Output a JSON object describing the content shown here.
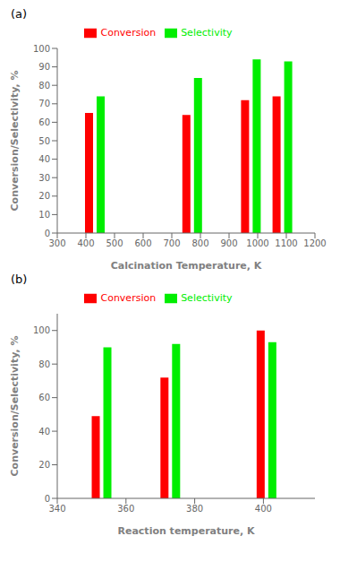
{
  "chart_data": [
    {
      "type": "bar",
      "title": "(a)",
      "x_label": "Calcination Temperature, K",
      "y_label": "Conversion/Selectivity, %",
      "x": [
        430,
        770,
        975,
        1085
      ],
      "series": [
        {
          "name": "Conversion",
          "color": "#ff0000",
          "values": [
            65,
            64,
            72,
            74
          ]
        },
        {
          "name": "Selectivity",
          "color": "#00ee00",
          "values": [
            74,
            84,
            94,
            93
          ]
        }
      ],
      "xlim": [
        300,
        1200
      ],
      "ylim": [
        0,
        100
      ],
      "xticks": [
        300,
        400,
        500,
        600,
        700,
        800,
        900,
        1000,
        1100,
        1200
      ],
      "yticks": [
        0,
        10,
        20,
        30,
        40,
        50,
        60,
        70,
        80,
        90,
        100
      ],
      "grid": false,
      "legend": "top"
    },
    {
      "type": "bar",
      "title": "(b)",
      "x_label": "Reaction temperature, K",
      "y_label": "Conversion/Selectivity, %",
      "x": [
        353,
        373,
        401
      ],
      "series": [
        {
          "name": "Conversion",
          "color": "#ff0000",
          "values": [
            49,
            72,
            100
          ]
        },
        {
          "name": "Selectivity",
          "color": "#00ee00",
          "values": [
            90,
            92,
            93
          ]
        }
      ],
      "xlim": [
        340,
        415
      ],
      "ylim": [
        0,
        110
      ],
      "xticks": [
        340,
        360,
        380,
        400
      ],
      "yticks": [
        0,
        20,
        40,
        60,
        80,
        100
      ],
      "grid": false,
      "legend": "top"
    }
  ]
}
